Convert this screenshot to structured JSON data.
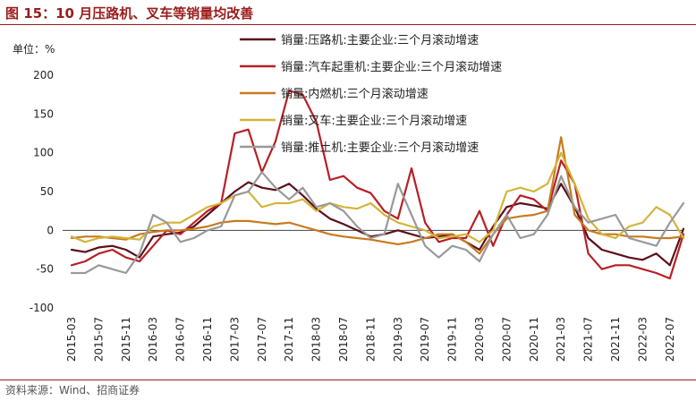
{
  "header": {
    "title": "图 15：10 月压路机、叉车等销量均改善"
  },
  "footer": {
    "source": "资料来源：Wind、招商证券"
  },
  "chart_data": {
    "type": "line",
    "title": "图 15：10 月压路机、叉车等销量均改善",
    "unit_label": "单位：%",
    "ylim": [
      -100,
      200
    ],
    "yticks": [
      -100,
      -50,
      0,
      50,
      100,
      150,
      200
    ],
    "grid": false,
    "legend_placement": "top-center",
    "x": [
      "2015-03",
      "2015-05",
      "2015-07",
      "2015-09",
      "2015-11",
      "2016-01",
      "2016-03",
      "2016-05",
      "2016-07",
      "2016-09",
      "2016-11",
      "2017-01",
      "2017-03",
      "2017-05",
      "2017-07",
      "2017-09",
      "2017-11",
      "2018-01",
      "2018-03",
      "2018-05",
      "2018-07",
      "2018-09",
      "2018-11",
      "2019-01",
      "2019-03",
      "2019-05",
      "2019-07",
      "2019-09",
      "2019-11",
      "2020-01",
      "2020-03",
      "2020-05",
      "2020-07",
      "2020-09",
      "2020-11",
      "2021-01",
      "2021-03",
      "2021-05",
      "2021-07",
      "2021-09",
      "2021-11",
      "2022-01",
      "2022-03",
      "2022-05",
      "2022-07",
      "2022-09"
    ],
    "xticks": [
      "2015-03",
      "2015-07",
      "2015-11",
      "2016-03",
      "2016-07",
      "2016-11",
      "2017-03",
      "2017-07",
      "2017-11",
      "2018-03",
      "2018-07",
      "2018-11",
      "2019-03",
      "2019-07",
      "2019-11",
      "2020-03",
      "2020-07",
      "2020-11",
      "2021-03",
      "2021-07",
      "2021-11",
      "2022-03",
      "2022-07"
    ],
    "series": [
      {
        "name": "销量:压路机:主要企业:三个月滚动增速",
        "color": "#5c0f1a",
        "width": 2.2,
        "values": [
          -25,
          -28,
          -22,
          -20,
          -25,
          -35,
          -8,
          -5,
          -3,
          5,
          20,
          35,
          50,
          62,
          55,
          52,
          60,
          45,
          28,
          15,
          8,
          0,
          -8,
          -5,
          0,
          -5,
          -10,
          -8,
          -5,
          -15,
          -25,
          5,
          30,
          35,
          32,
          28,
          60,
          30,
          -10,
          -25,
          -30,
          -35,
          -38,
          -30,
          -45,
          2
        ]
      },
      {
        "name": "销量:汽车起重机:主要企业:三个月滚动增速",
        "color": "#b81f24",
        "width": 2.2,
        "values": [
          -45,
          -40,
          -30,
          -25,
          -35,
          -40,
          -20,
          0,
          -5,
          10,
          25,
          35,
          125,
          130,
          75,
          115,
          180,
          175,
          140,
          65,
          70,
          55,
          48,
          25,
          15,
          80,
          10,
          -15,
          -10,
          -10,
          25,
          -20,
          20,
          45,
          40,
          25,
          90,
          60,
          -30,
          -50,
          -45,
          -45,
          -50,
          -55,
          -62,
          -5
        ]
      },
      {
        "name": "销量:内燃机:三个月滚动增速",
        "color": "#c77a1e",
        "width": 2.2,
        "values": [
          -10,
          -8,
          -8,
          -10,
          -12,
          -5,
          -2,
          0,
          0,
          2,
          5,
          10,
          12,
          12,
          10,
          8,
          10,
          5,
          0,
          -5,
          -8,
          -10,
          -12,
          -15,
          -18,
          -15,
          -10,
          -5,
          -5,
          -15,
          -30,
          -5,
          15,
          18,
          20,
          25,
          120,
          20,
          0,
          -5,
          -5,
          -8,
          -8,
          -10,
          -10,
          -8
        ]
      },
      {
        "name": "销量:叉车:主要企业:三个月滚动增速",
        "color": "#d4b43a",
        "width": 2.2,
        "values": [
          -8,
          -15,
          -10,
          -8,
          -10,
          -12,
          5,
          10,
          10,
          20,
          30,
          35,
          45,
          50,
          30,
          35,
          35,
          40,
          25,
          35,
          30,
          28,
          35,
          20,
          10,
          5,
          0,
          -10,
          -8,
          -5,
          -15,
          0,
          50,
          55,
          50,
          60,
          100,
          60,
          15,
          -5,
          -10,
          5,
          10,
          30,
          20,
          -10
        ]
      },
      {
        "name": "销量:推土机:主要企业:三个月滚动增速",
        "color": "#999999",
        "width": 2.2,
        "values": [
          -55,
          -55,
          -45,
          -50,
          -55,
          -30,
          20,
          10,
          -15,
          -10,
          0,
          5,
          45,
          50,
          75,
          55,
          40,
          55,
          30,
          35,
          25,
          5,
          -10,
          -5,
          60,
          20,
          -20,
          -35,
          -20,
          -25,
          -40,
          -5,
          20,
          -10,
          -5,
          20,
          70,
          30,
          10,
          15,
          20,
          -10,
          -15,
          -20,
          10,
          35
        ]
      }
    ]
  }
}
